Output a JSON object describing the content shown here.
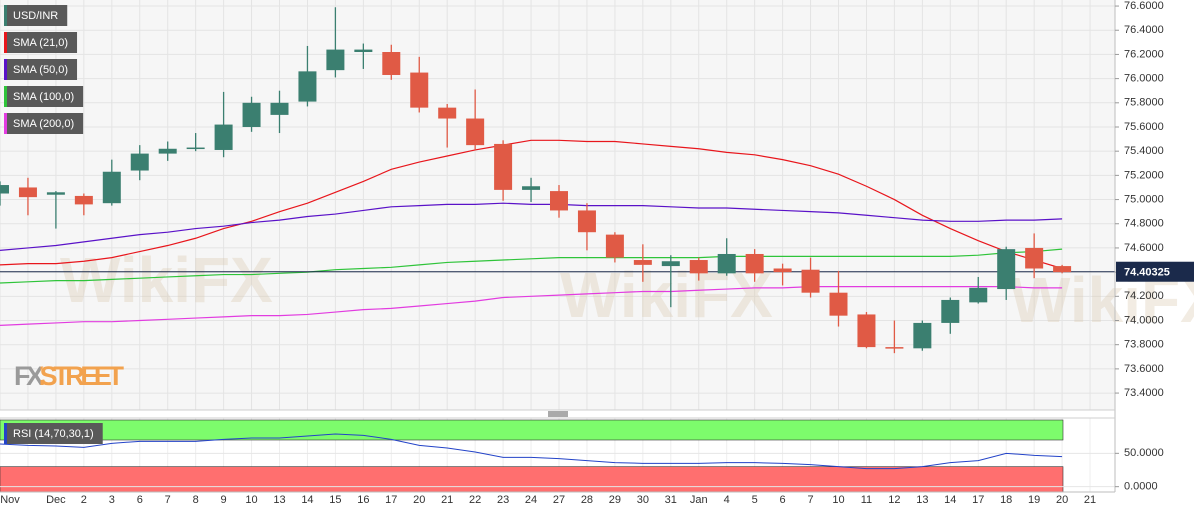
{
  "chart_data": [
    {
      "type": "candlestick",
      "symbol": "USD/INR",
      "brand": "FXSTREET",
      "watermark": "WikiFX",
      "categories": [
        "Nov",
        null,
        "Dec",
        "2",
        "3",
        "6",
        "7",
        "8",
        "9",
        "10",
        "13",
        "14",
        "15",
        "16",
        "17",
        "20",
        "21",
        "22",
        "23",
        "24",
        "27",
        "28",
        "29",
        "30",
        "31",
        "Jan",
        "4",
        "5",
        "6",
        "7",
        "10",
        "11",
        "12",
        "13",
        "14",
        "17",
        "18",
        "19",
        "20",
        "21"
      ],
      "open": [
        75.05,
        75.1,
        75.04,
        75.03,
        74.97,
        75.24,
        75.38,
        75.42,
        75.41,
        75.6,
        75.7,
        75.81,
        76.07,
        76.22,
        76.22,
        76.05,
        75.76,
        75.67,
        75.46,
        75.08,
        75.07,
        74.91,
        74.71,
        74.5,
        74.45,
        74.5,
        74.39,
        74.55,
        74.43,
        74.42,
        74.23,
        74.05,
        73.78,
        73.77,
        73.98,
        74.15,
        74.26,
        74.6,
        74.45,
        null
      ],
      "high": [
        75.15,
        75.18,
        75.07,
        75.05,
        75.33,
        75.45,
        75.48,
        75.55,
        75.89,
        75.85,
        75.9,
        76.27,
        76.59,
        76.29,
        76.28,
        76.18,
        75.79,
        75.91,
        75.49,
        75.18,
        75.12,
        74.97,
        74.73,
        74.63,
        74.54,
        74.52,
        74.68,
        74.59,
        74.47,
        74.52,
        74.41,
        74.07,
        74.0,
        74.0,
        74.19,
        74.36,
        74.61,
        74.72,
        74.46,
        null
      ],
      "low": [
        74.95,
        74.87,
        74.76,
        74.87,
        74.95,
        75.16,
        75.32,
        75.4,
        75.35,
        75.56,
        75.55,
        75.77,
        76.01,
        76.08,
        75.99,
        75.72,
        75.43,
        75.41,
        74.99,
        74.98,
        74.85,
        74.58,
        74.48,
        74.32,
        74.11,
        74.33,
        74.37,
        74.32,
        74.29,
        74.19,
        73.95,
        73.77,
        73.73,
        73.75,
        73.89,
        74.14,
        74.17,
        74.35,
        74.39,
        null
      ],
      "close": [
        75.12,
        75.02,
        75.06,
        74.96,
        75.23,
        75.38,
        75.42,
        75.43,
        75.62,
        75.8,
        75.8,
        76.06,
        76.24,
        76.24,
        76.03,
        75.76,
        75.67,
        75.45,
        75.08,
        75.11,
        74.91,
        74.73,
        74.52,
        74.46,
        74.49,
        74.39,
        74.55,
        74.39,
        74.4,
        74.23,
        74.04,
        73.78,
        73.77,
        73.98,
        74.17,
        74.27,
        74.59,
        74.43,
        74.4,
        null
      ],
      "up_color": "#3b7f70",
      "down_color": "#e05a45",
      "series": [
        {
          "name": "SMA (21,0)",
          "color": "#e8161c",
          "values": [
            74.46,
            74.47,
            74.47,
            74.49,
            74.52,
            74.57,
            74.62,
            74.68,
            74.76,
            74.82,
            74.9,
            74.97,
            75.06,
            75.15,
            75.25,
            75.31,
            75.36,
            75.41,
            75.45,
            75.49,
            75.49,
            75.48,
            75.48,
            75.46,
            75.44,
            75.42,
            75.39,
            75.37,
            75.33,
            75.28,
            75.21,
            75.11,
            75.0,
            74.87,
            74.76,
            74.66,
            74.57,
            74.5,
            74.43,
            null
          ]
        },
        {
          "name": "SMA (50,0)",
          "color": "#5a12c8",
          "values": [
            74.58,
            74.6,
            74.62,
            74.65,
            74.68,
            74.71,
            74.73,
            74.76,
            74.78,
            74.81,
            74.83,
            74.86,
            74.88,
            74.91,
            74.94,
            74.95,
            74.96,
            74.96,
            74.97,
            74.96,
            74.96,
            74.95,
            74.95,
            74.95,
            74.94,
            74.93,
            74.93,
            74.92,
            74.91,
            74.9,
            74.89,
            74.87,
            74.85,
            74.83,
            74.82,
            74.82,
            74.83,
            74.83,
            74.84,
            null
          ]
        },
        {
          "name": "SMA (100,0)",
          "color": "#2fc43a",
          "values": [
            74.31,
            74.32,
            74.33,
            74.33,
            74.34,
            74.35,
            74.36,
            74.37,
            74.38,
            74.38,
            74.39,
            74.4,
            74.42,
            74.43,
            74.44,
            74.46,
            74.48,
            74.49,
            74.5,
            74.51,
            74.52,
            74.52,
            74.52,
            74.52,
            74.52,
            74.52,
            74.53,
            74.53,
            74.53,
            74.53,
            74.53,
            74.53,
            74.53,
            74.53,
            74.53,
            74.54,
            74.56,
            74.57,
            74.59,
            null
          ]
        },
        {
          "name": "SMA (200,0)",
          "color": "#e23ce0",
          "values": [
            73.96,
            73.97,
            73.98,
            73.99,
            73.99,
            74.0,
            74.01,
            74.02,
            74.03,
            74.04,
            74.04,
            74.05,
            74.07,
            74.09,
            74.1,
            74.12,
            74.14,
            74.16,
            74.19,
            74.2,
            74.21,
            74.22,
            74.23,
            74.24,
            74.24,
            74.25,
            74.26,
            74.27,
            74.27,
            74.28,
            74.28,
            74.28,
            74.28,
            74.28,
            74.28,
            74.28,
            74.28,
            74.27,
            74.27,
            null
          ]
        }
      ],
      "last_price": 74.40325,
      "ylim": [
        73.26,
        76.65
      ],
      "yticks": [
        {
          "value": 73.4,
          "label": "73.4000"
        },
        {
          "value": 73.6,
          "label": "73.6000"
        },
        {
          "value": 73.8,
          "label": "73.8000"
        },
        {
          "value": 74.0,
          "label": "74.0000"
        },
        {
          "value": 74.2,
          "label": "74.2000"
        },
        {
          "value": 74.4,
          "label": "74.4000"
        },
        {
          "value": 74.6,
          "label": "74.6000"
        },
        {
          "value": 74.8,
          "label": "74.8000"
        },
        {
          "value": 75.0,
          "label": "75.0000"
        },
        {
          "value": 75.2,
          "label": "75.2000"
        },
        {
          "value": 75.4,
          "label": "75.4000"
        },
        {
          "value": 75.6,
          "label": "75.6000"
        },
        {
          "value": 75.8,
          "label": "75.8000"
        },
        {
          "value": 76.0,
          "label": "76.0000"
        },
        {
          "value": 76.2,
          "label": "76.2000"
        },
        {
          "value": 76.4,
          "label": "76.4000"
        },
        {
          "value": 76.6,
          "label": "76.6000"
        }
      ],
      "grid": true
    },
    {
      "type": "line",
      "name": "RSI (14,70,30,1)",
      "color": "#2343c8",
      "values": [
        64,
        62,
        61,
        59,
        65,
        68,
        68,
        68,
        71,
        73,
        73,
        76,
        79,
        77,
        71,
        62,
        58,
        52,
        44,
        44,
        42,
        39,
        36,
        35,
        35,
        35,
        36,
        36,
        35,
        33,
        30,
        27,
        27,
        30,
        36,
        39,
        50,
        47,
        45,
        null
      ],
      "bands": [
        {
          "from": 70,
          "to": 100,
          "color": "#7dfc6c"
        },
        {
          "from": 30,
          "to": -8,
          "color": "#ff6f6f"
        }
      ],
      "ylim": [
        -8,
        103
      ],
      "yticks": [
        {
          "value": 0,
          "label": "0.0000"
        },
        {
          "value": 50,
          "label": "50.0000"
        }
      ],
      "grid": true
    }
  ]
}
